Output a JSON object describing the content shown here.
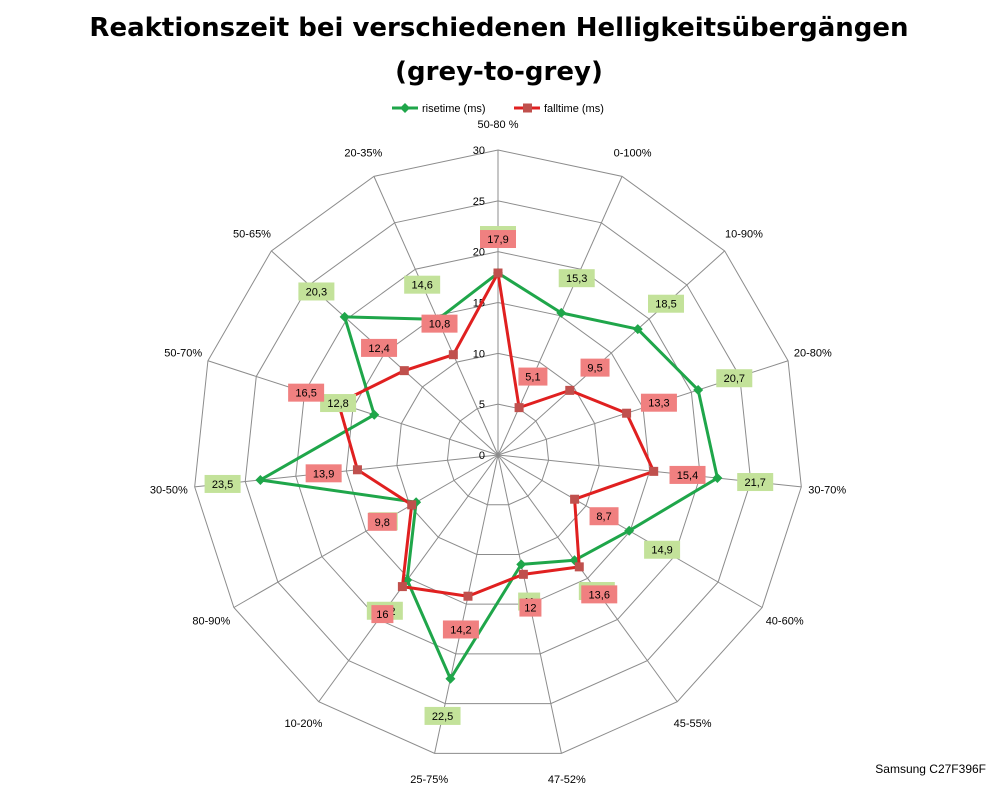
{
  "chart_data": {
    "type": "radar",
    "title_line1": "Reaktionszeit bei verschiedenen Helligkeitsübergängen",
    "title_line2": "(grey-to-grey)",
    "categories": [
      "50-80 %",
      "0-100%",
      "10-90%",
      "20-80%",
      "30-70%",
      "40-60%",
      "45-55%",
      "47-52%",
      "25-75%",
      "10-20%",
      "80-90%",
      "30-50%",
      "50-70%",
      "50-65%",
      "20-35%"
    ],
    "axis_ticks": [
      "0",
      "5",
      "10",
      "15",
      "20",
      "25",
      "30"
    ],
    "ylim": [
      0,
      30
    ],
    "grid": true,
    "legend_position": "top-center",
    "series": [
      {
        "name": "risetime (ms)",
        "color": "#1fa64a",
        "marker": "diamond",
        "values": [
          17.9,
          15.3,
          18.5,
          20.7,
          21.7,
          14.9,
          12.8,
          11,
          22.5,
          15.2,
          9.3,
          23.5,
          12.8,
          20.3,
          14.6
        ],
        "labels": [
          "17,9",
          "15,3",
          "18,5",
          "20,7",
          "21,7",
          "14,9",
          "12,8",
          "11",
          "22,5",
          "15,2",
          "9,3",
          "23,5",
          "12,8",
          "20,3",
          "14,6"
        ],
        "label_color": "#c3e29a"
      },
      {
        "name": "falltime (ms)",
        "color": "#e02020",
        "marker": "square",
        "values": [
          17.9,
          5.1,
          9.5,
          13.3,
          15.4,
          8.7,
          13.6,
          12,
          14.2,
          16,
          9.8,
          13.9,
          16.5,
          12.4,
          10.8
        ],
        "labels": [
          "17,9",
          "5,1",
          "9,5",
          "13,3",
          "15,4",
          "8,7",
          "13,6",
          "12",
          "14,2",
          "16",
          "9,8",
          "13,9",
          "16,5",
          "12,4",
          "10,8"
        ],
        "label_color": "#f08080"
      }
    ]
  },
  "credit": "Samsung C27F396F"
}
